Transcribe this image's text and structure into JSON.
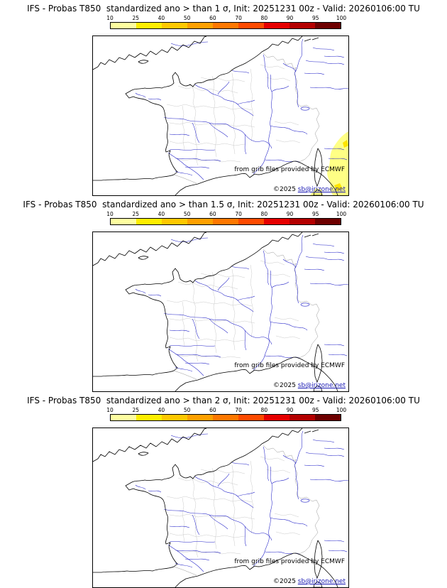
{
  "colorbar": {
    "ticks": [
      "10",
      "25",
      "40",
      "50",
      "60",
      "70",
      "80",
      "90",
      "95",
      "100"
    ],
    "colors": [
      "#ffffa0",
      "#ffee00",
      "#ffc800",
      "#ffa000",
      "#ff7800",
      "#ff4b00",
      "#e60000",
      "#b40000",
      "#6e0000"
    ]
  },
  "map": {
    "credit": "from grib files provided by ECMWF",
    "copyright_prefix": "©2025 ",
    "copyright_link": "sb@irizone.net"
  },
  "panels": [
    {
      "title": "IFS - Probas T850  standardized ano > than 1 σ, Init: 20251231 00z - Valid: 20260106:00 TU"
    },
    {
      "title": "IFS - Probas T850  standardized ano > than 1.5 σ, Init: 20251231 00z - Valid: 20260106:00 TU"
    },
    {
      "title": "IFS - Probas T850  standardized ano > than 2 σ, Init: 20251231 00z - Valid: 20260106:00 TU"
    }
  ]
}
